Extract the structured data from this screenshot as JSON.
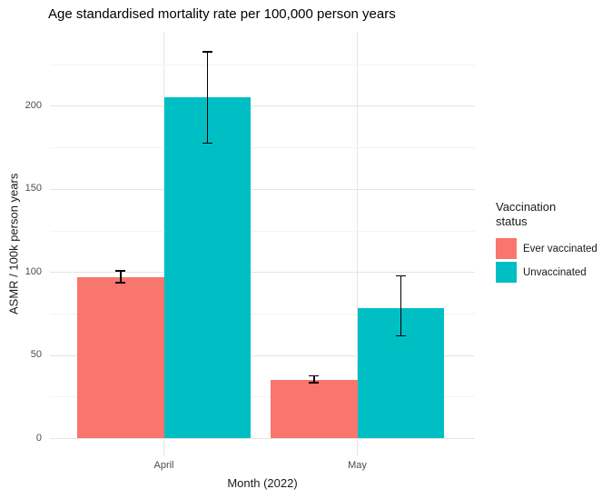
{
  "chart_data": {
    "type": "bar",
    "title": "Age standardised mortality rate per 100,000 person years",
    "xlabel": "Month (2022)",
    "ylabel": "ASMR / 100k person years",
    "categories": [
      "April",
      "May"
    ],
    "series": [
      {
        "name": "Ever vaccinated",
        "color": "#F8766D",
        "values": [
          97,
          35
        ],
        "ci_low": [
          93,
          33
        ],
        "ci_high": [
          101,
          38
        ]
      },
      {
        "name": "Unvaccinated",
        "color": "#00BFC4",
        "values": [
          205,
          78
        ],
        "ci_low": [
          177,
          61
        ],
        "ci_high": [
          233,
          98
        ]
      }
    ],
    "yticks": [
      0,
      50,
      100,
      150,
      200
    ],
    "ylim": [
      0,
      245
    ],
    "grid": true,
    "error_bars": true,
    "legend": {
      "title": "Vaccination status",
      "position": "right"
    },
    "colors": {
      "background": "#ffffff",
      "grid_major": "#e4e4e4",
      "grid_minor": "#f3f3f3",
      "error_bar": "#000000",
      "tick_text": "#4d4d4d",
      "title_text": "#000000"
    }
  }
}
